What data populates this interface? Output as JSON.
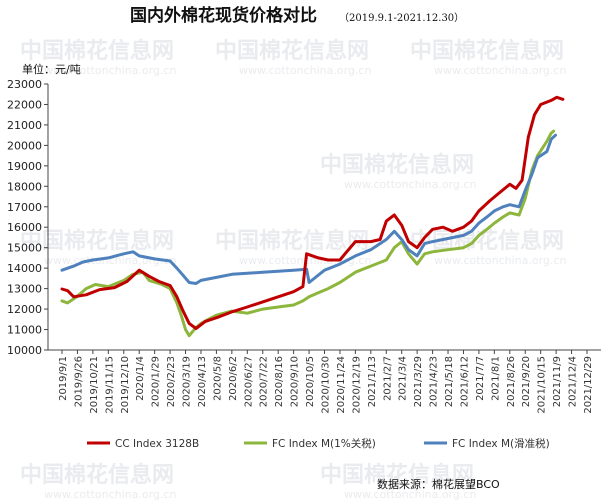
{
  "title": "国内外棉花现货价格对比",
  "subtitle": "（2019.9.1-2021.12.30）",
  "unit": "单位：元/吨",
  "source": "数据来源：棉花展望BCO",
  "watermark": "中国棉花信息网",
  "watermark_url": "www.cottonchina.org.cn",
  "chart_data": {
    "type": "line",
    "title": "国内外棉花现货价格对比",
    "subtitle": "（2019.9.1-2021.12.30）",
    "ylabel": "单位：元/吨",
    "ylim": [
      10000,
      23000
    ],
    "yticks": [
      10000,
      11000,
      12000,
      13000,
      14000,
      15000,
      16000,
      17000,
      18000,
      19000,
      20000,
      21000,
      22000,
      23000
    ],
    "grid": false,
    "legend_position": "bottom",
    "x_tick_labels": [
      "2019/9/1",
      "2019/9/26",
      "2019/10/21",
      "2019/11/15",
      "2019/12/10",
      "2020/1/4",
      "2020/1/29",
      "2020/2/23",
      "2020/3/19",
      "2020/4/13",
      "2020/5/8",
      "2020/6/2",
      "2020/6/27",
      "2020/7/22",
      "2020/8/16",
      "2020/9/10",
      "2020/10/5",
      "2020/10/30",
      "2020/11/24",
      "2020/12/19",
      "2021/1/13",
      "2021/2/7",
      "2021/3/4",
      "2021/3/29",
      "2021/4/23",
      "2021/5/18",
      "2021/6/12",
      "2021/7/7",
      "2021/8/1",
      "2021/8/26",
      "2021/9/20",
      "2021/10/15",
      "2021/11/9",
      "2021/12/4",
      "2021/12/29"
    ],
    "series": [
      {
        "name": "CC Index 3128B",
        "color": "#c00000",
        "points": [
          [
            "2019/9/1",
            12980
          ],
          [
            "2019/9/10",
            12900
          ],
          [
            "2019/9/20",
            12600
          ],
          [
            "2019/10/10",
            12700
          ],
          [
            "2019/11/1",
            12950
          ],
          [
            "2019/11/25",
            13050
          ],
          [
            "2019/12/15",
            13350
          ],
          [
            "2020/1/4",
            13900
          ],
          [
            "2020/1/20",
            13600
          ],
          [
            "2020/2/5",
            13350
          ],
          [
            "2020/2/23",
            13150
          ],
          [
            "2020/3/5",
            12600
          ],
          [
            "2020/3/15",
            11900
          ],
          [
            "2020/3/25",
            11300
          ],
          [
            "2020/4/5",
            11050
          ],
          [
            "2020/4/20",
            11400
          ],
          [
            "2020/5/10",
            11600
          ],
          [
            "2020/6/1",
            11850
          ],
          [
            "2020/6/27",
            12100
          ],
          [
            "2020/7/22",
            12350
          ],
          [
            "2020/8/16",
            12600
          ],
          [
            "2020/9/10",
            12850
          ],
          [
            "2020/9/25",
            13100
          ],
          [
            "2020/10/1",
            14700
          ],
          [
            "2020/10/20",
            14500
          ],
          [
            "2020/11/5",
            14400
          ],
          [
            "2020/11/24",
            14400
          ],
          [
            "2020/12/5",
            14800
          ],
          [
            "2020/12/19",
            15300
          ],
          [
            "2021/1/13",
            15300
          ],
          [
            "2021/1/28",
            15400
          ],
          [
            "2021/2/7",
            16300
          ],
          [
            "2021/2/20",
            16600
          ],
          [
            "2021/3/4",
            16100
          ],
          [
            "2021/3/15",
            15300
          ],
          [
            "2021/3/29",
            15000
          ],
          [
            "2021/4/10",
            15500
          ],
          [
            "2021/4/23",
            15900
          ],
          [
            "2021/5/10",
            16000
          ],
          [
            "2021/5/25",
            15800
          ],
          [
            "2021/6/12",
            16000
          ],
          [
            "2021/6/25",
            16300
          ],
          [
            "2021/7/7",
            16800
          ],
          [
            "2021/7/25",
            17300
          ],
          [
            "2021/8/10",
            17700
          ],
          [
            "2021/8/26",
            18100
          ],
          [
            "2021/9/5",
            17900
          ],
          [
            "2021/9/15",
            18300
          ],
          [
            "2021/9/25",
            20400
          ],
          [
            "2021/10/5",
            21500
          ],
          [
            "2021/10/15",
            22000
          ],
          [
            "2021/11/1",
            22200
          ],
          [
            "2021/11/10",
            22350
          ],
          [
            "2021/11/20",
            22250
          ]
        ]
      },
      {
        "name": "FC Index M(1%关税)",
        "color": "#8db63c",
        "points": [
          [
            "2019/9/1",
            12400
          ],
          [
            "2019/9/10",
            12300
          ],
          [
            "2019/9/25",
            12600
          ],
          [
            "2019/10/10",
            13000
          ],
          [
            "2019/10/25",
            13200
          ],
          [
            "2019/11/15",
            13100
          ],
          [
            "2019/12/10",
            13400
          ],
          [
            "2019/12/25",
            13700
          ],
          [
            "2020/1/10",
            13800
          ],
          [
            "2020/1/20",
            13400
          ],
          [
            "2020/2/10",
            13200
          ],
          [
            "2020/2/23",
            13000
          ],
          [
            "2020/3/5",
            12300
          ],
          [
            "2020/3/12",
            11700
          ],
          [
            "2020/3/19",
            11000
          ],
          [
            "2020/3/25",
            10700
          ],
          [
            "2020/4/5",
            11100
          ],
          [
            "2020/4/13",
            11300
          ],
          [
            "2020/4/25",
            11500
          ],
          [
            "2020/5/8",
            11700
          ],
          [
            "2020/6/2",
            11900
          ],
          [
            "2020/6/27",
            11800
          ],
          [
            "2020/7/10",
            11900
          ],
          [
            "2020/7/22",
            12000
          ],
          [
            "2020/8/16",
            12100
          ],
          [
            "2020/9/10",
            12200
          ],
          [
            "2020/9/25",
            12400
          ],
          [
            "2020/10/5",
            12600
          ],
          [
            "2020/10/20",
            12800
          ],
          [
            "2020/11/5",
            13000
          ],
          [
            "2020/11/24",
            13300
          ],
          [
            "2020/12/19",
            13800
          ],
          [
            "2021/1/13",
            14100
          ],
          [
            "2021/2/7",
            14400
          ],
          [
            "2021/2/20",
            15000
          ],
          [
            "2021/3/4",
            15300
          ],
          [
            "2021/3/15",
            14700
          ],
          [
            "2021/3/29",
            14200
          ],
          [
            "2021/4/10",
            14700
          ],
          [
            "2021/4/23",
            14800
          ],
          [
            "2021/5/18",
            14900
          ],
          [
            "2021/6/12",
            15000
          ],
          [
            "2021/6/25",
            15200
          ],
          [
            "2021/7/7",
            15600
          ],
          [
            "2021/7/20",
            15900
          ],
          [
            "2021/8/1",
            16200
          ],
          [
            "2021/8/15",
            16500
          ],
          [
            "2021/8/26",
            16700
          ],
          [
            "2021/9/10",
            16600
          ],
          [
            "2021/9/20",
            17400
          ],
          [
            "2021/10/1",
            18800
          ],
          [
            "2021/10/10",
            19500
          ],
          [
            "2021/10/25",
            20200
          ],
          [
            "2021/11/1",
            20600
          ],
          [
            "2021/11/5",
            20700
          ]
        ]
      },
      {
        "name": "FC Index M(滑准税)",
        "color": "#4f81bd",
        "points": [
          [
            "2019/9/1",
            13900
          ],
          [
            "2019/9/10",
            14000
          ],
          [
            "2019/9/20",
            14100
          ],
          [
            "2019/10/5",
            14300
          ],
          [
            "2019/10/21",
            14400
          ],
          [
            "2019/11/15",
            14500
          ],
          [
            "2019/12/10",
            14700
          ],
          [
            "2019/12/25",
            14800
          ],
          [
            "2020/1/4",
            14600
          ],
          [
            "2020/1/29",
            14450
          ],
          [
            "2020/2/23",
            14350
          ],
          [
            "2020/3/5",
            14000
          ],
          [
            "2020/3/15",
            13650
          ],
          [
            "2020/3/25",
            13300
          ],
          [
            "2020/4/5",
            13250
          ],
          [
            "2020/4/13",
            13400
          ],
          [
            "2020/5/8",
            13550
          ],
          [
            "2020/6/2",
            13700
          ],
          [
            "2020/6/27",
            13750
          ],
          [
            "2020/7/22",
            13800
          ],
          [
            "2020/8/16",
            13850
          ],
          [
            "2020/9/10",
            13900
          ],
          [
            "2020/10/1",
            13950
          ],
          [
            "2020/10/5",
            13300
          ],
          [
            "2020/10/30",
            13900
          ],
          [
            "2020/11/24",
            14200
          ],
          [
            "2020/12/19",
            14600
          ],
          [
            "2021/1/13",
            14900
          ],
          [
            "2021/2/7",
            15400
          ],
          [
            "2021/2/20",
            15800
          ],
          [
            "2021/3/4",
            15400
          ],
          [
            "2021/3/15",
            14900
          ],
          [
            "2021/3/29",
            14600
          ],
          [
            "2021/4/10",
            15200
          ],
          [
            "2021/4/23",
            15300
          ],
          [
            "2021/5/18",
            15450
          ],
          [
            "2021/6/12",
            15600
          ],
          [
            "2021/6/25",
            15800
          ],
          [
            "2021/7/7",
            16200
          ],
          [
            "2021/7/20",
            16500
          ],
          [
            "2021/8/1",
            16800
          ],
          [
            "2021/8/15",
            17000
          ],
          [
            "2021/8/26",
            17100
          ],
          [
            "2021/9/10",
            17000
          ],
          [
            "2021/9/20",
            17800
          ],
          [
            "2021/10/1",
            18600
          ],
          [
            "2021/10/10",
            19400
          ],
          [
            "2021/10/25",
            19700
          ],
          [
            "2021/11/1",
            20300
          ],
          [
            "2021/11/8",
            20500
          ]
        ]
      }
    ]
  }
}
